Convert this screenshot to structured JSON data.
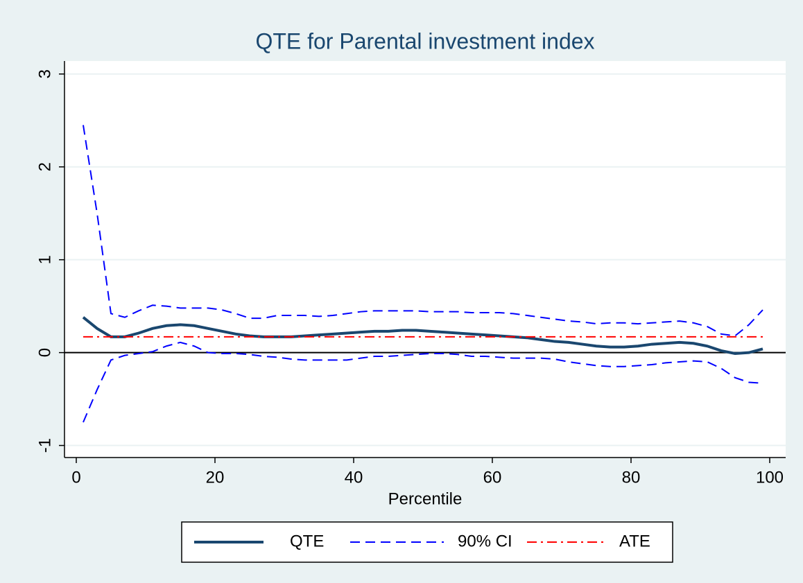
{
  "chart_data": {
    "type": "line",
    "title": "QTE for Parental investment index",
    "x_label": "Percentile",
    "x": [
      1,
      3,
      5,
      7,
      9,
      11,
      13,
      15,
      17,
      19,
      21,
      23,
      25,
      27,
      29,
      31,
      33,
      35,
      37,
      39,
      41,
      43,
      45,
      47,
      49,
      51,
      53,
      55,
      57,
      59,
      61,
      63,
      65,
      67,
      69,
      71,
      73,
      75,
      77,
      79,
      81,
      83,
      85,
      87,
      89,
      91,
      93,
      95,
      97,
      99
    ],
    "series": [
      {
        "name": "QTE",
        "color": "#1a476f",
        "line_style": "solid",
        "values": [
          0.38,
          0.26,
          0.17,
          0.17,
          0.21,
          0.26,
          0.29,
          0.3,
          0.29,
          0.26,
          0.23,
          0.2,
          0.18,
          0.17,
          0.17,
          0.17,
          0.18,
          0.19,
          0.2,
          0.21,
          0.22,
          0.23,
          0.23,
          0.24,
          0.24,
          0.23,
          0.22,
          0.21,
          0.2,
          0.19,
          0.18,
          0.17,
          0.16,
          0.14,
          0.12,
          0.11,
          0.09,
          0.07,
          0.06,
          0.06,
          0.07,
          0.09,
          0.1,
          0.11,
          0.1,
          0.07,
          0.02,
          -0.01,
          0.0,
          0.04
        ]
      },
      {
        "name": "90% CI",
        "color": "#0000ff",
        "line_style": "dash",
        "values": [
          2.45,
          1.5,
          0.42,
          0.38,
          0.45,
          0.51,
          0.5,
          0.48,
          0.48,
          0.48,
          0.46,
          0.42,
          0.37,
          0.37,
          0.4,
          0.4,
          0.4,
          0.39,
          0.4,
          0.42,
          0.44,
          0.45,
          0.45,
          0.45,
          0.45,
          0.44,
          0.44,
          0.44,
          0.43,
          0.43,
          0.43,
          0.42,
          0.4,
          0.38,
          0.36,
          0.34,
          0.33,
          0.31,
          0.32,
          0.32,
          0.31,
          0.32,
          0.33,
          0.34,
          0.32,
          0.28,
          0.2,
          0.18,
          0.3,
          0.46
        ]
      },
      {
        "name": null,
        "color": "#0000ff",
        "line_style": "dash",
        "values": [
          -0.75,
          -0.4,
          -0.08,
          -0.03,
          -0.01,
          0.01,
          0.07,
          0.11,
          0.07,
          0.0,
          -0.01,
          -0.01,
          -0.02,
          -0.04,
          -0.05,
          -0.07,
          -0.08,
          -0.08,
          -0.08,
          -0.08,
          -0.06,
          -0.04,
          -0.04,
          -0.03,
          -0.02,
          -0.01,
          -0.01,
          -0.02,
          -0.04,
          -0.04,
          -0.05,
          -0.06,
          -0.06,
          -0.06,
          -0.07,
          -0.1,
          -0.12,
          -0.14,
          -0.15,
          -0.15,
          -0.14,
          -0.13,
          -0.11,
          -0.1,
          -0.09,
          -0.1,
          -0.17,
          -0.27,
          -0.32,
          -0.33
        ]
      },
      {
        "name": "ATE",
        "color": "#ff0000",
        "line_style": "dashdot",
        "values": [
          0.17,
          0.17,
          0.17,
          0.17,
          0.17,
          0.17,
          0.17,
          0.17,
          0.17,
          0.17,
          0.17,
          0.17,
          0.17,
          0.17,
          0.17,
          0.17,
          0.17,
          0.17,
          0.17,
          0.17,
          0.17,
          0.17,
          0.17,
          0.17,
          0.17,
          0.17,
          0.17,
          0.17,
          0.17,
          0.17,
          0.17,
          0.17,
          0.17,
          0.17,
          0.17,
          0.17,
          0.17,
          0.17,
          0.17,
          0.17,
          0.17,
          0.17,
          0.17,
          0.17,
          0.17,
          0.17,
          0.17,
          0.17,
          0.17,
          0.17
        ]
      }
    ],
    "xlim": [
      -1.7,
      102.3
    ],
    "ylim": [
      -1.13,
      3.14
    ],
    "xticks": [
      0,
      20,
      40,
      60,
      80,
      100
    ],
    "yticks": [
      -1,
      0,
      1,
      2,
      3
    ],
    "yline": 0,
    "grid": true,
    "legend": "bottom"
  }
}
